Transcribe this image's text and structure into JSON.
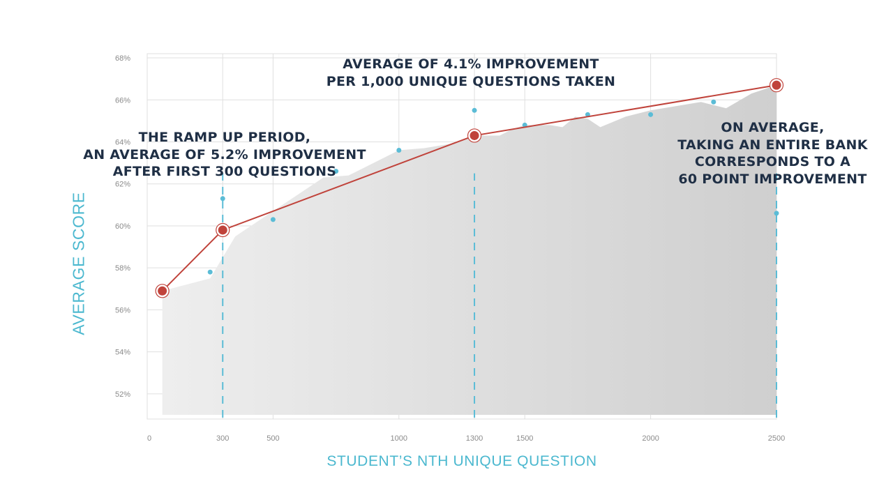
{
  "chart_data": {
    "type": "area",
    "xlabel": "STUDENT’S NTH UNIQUE QUESTION",
    "ylabel": "AVERAGE SCORE",
    "xlim": [
      0,
      2500
    ],
    "ylim": [
      50.8,
      68.2
    ],
    "x_ticks": [
      {
        "value": 0,
        "label": "0"
      },
      {
        "value": 300,
        "label": "300"
      },
      {
        "value": 500,
        "label": "500"
      },
      {
        "value": 1000,
        "label": "1000"
      },
      {
        "value": 1300,
        "label": "1300"
      },
      {
        "value": 1500,
        "label": "1500"
      },
      {
        "value": 2000,
        "label": "2000"
      },
      {
        "value": 2500,
        "label": "2500"
      }
    ],
    "y_ticks": [
      {
        "value": 52,
        "label": "52%"
      },
      {
        "value": 54,
        "label": "54%"
      },
      {
        "value": 56,
        "label": "56%"
      },
      {
        "value": 58,
        "label": "58%"
      },
      {
        "value": 60,
        "label": "60%"
      },
      {
        "value": 62,
        "label": "62%"
      },
      {
        "value": 64,
        "label": "64%"
      },
      {
        "value": 66,
        "label": "66%"
      },
      {
        "value": 68,
        "label": "68%"
      }
    ],
    "area_series": {
      "baseline": 51.0,
      "x": [
        60,
        250,
        300,
        350,
        450,
        600,
        700,
        800,
        1000,
        1100,
        1200,
        1300,
        1400,
        1450,
        1500,
        1600,
        1650,
        1700,
        1750,
        1800,
        1900,
        2000,
        2100,
        2200,
        2300,
        2400,
        2500
      ],
      "y": [
        56.9,
        57.5,
        58.5,
        59.5,
        60.3,
        61.5,
        62.3,
        62.4,
        63.6,
        63.7,
        63.9,
        64.3,
        64.3,
        64.6,
        64.8,
        64.8,
        64.7,
        65.2,
        65.1,
        64.7,
        65.2,
        65.5,
        65.7,
        65.9,
        65.6,
        66.3,
        66.7
      ]
    },
    "sample_points": {
      "x": [
        250,
        300,
        500,
        750,
        1000,
        1300,
        1500,
        1750,
        2000,
        2250,
        2500
      ],
      "y": [
        57.8,
        61.3,
        60.3,
        62.6,
        63.6,
        65.5,
        64.8,
        65.3,
        65.3,
        65.9,
        60.6
      ]
    },
    "trend_series": {
      "x": [
        60,
        300,
        1300,
        2500
      ],
      "y": [
        56.9,
        59.8,
        64.3,
        66.7
      ]
    },
    "reference_lines_x": [
      300,
      1300,
      2500
    ],
    "grid": true,
    "colors": {
      "area": "#d4d4d4",
      "trend": "#c0433b",
      "points": "#5bbcd6",
      "reference": "#5bbcd6",
      "grid": "#dfdfdf",
      "tick_text": "#8a8a8a",
      "annotation": "#1f2f45",
      "axis_title": "#4bb8cf"
    }
  },
  "annotations": {
    "top": [
      "AVERAGE OF 4.1% IMPROVEMENT",
      "PER 1,000 UNIQUE QUESTIONS TAKEN"
    ],
    "left": [
      "THE RAMP UP PERIOD,",
      "AN AVERAGE OF 5.2% IMPROVEMENT",
      "AFTER FIRST 300 QUESTIONS"
    ],
    "right": [
      "ON AVERAGE,",
      "TAKING AN ENTIRE BANK",
      "CORRESPONDS TO A",
      "60 POINT IMPROVEMENT"
    ]
  }
}
